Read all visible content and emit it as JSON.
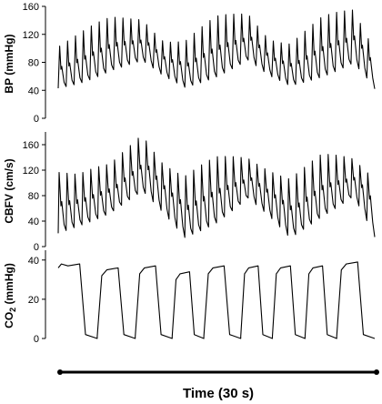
{
  "chart_data": [
    {
      "type": "line",
      "ylabel": "BP (mmHg)",
      "yticks": [
        0,
        40,
        80,
        120,
        160
      ],
      "ylim": [
        0,
        160
      ],
      "xlim": [
        0,
        30
      ],
      "beats_per_cycle": 13,
      "cycles": 3,
      "series": [
        {
          "description_keypoints_x_s": [
            0,
            2,
            5,
            8,
            10,
            12,
            15,
            18,
            20,
            22,
            25,
            28,
            30
          ],
          "diastolic_envelope": [
            42,
            52,
            70,
            80,
            58,
            45,
            62,
            82,
            58,
            45,
            62,
            80,
            42
          ],
          "systolic_envelope": [
            105,
            118,
            140,
            145,
            115,
            110,
            140,
            150,
            118,
            110,
            140,
            152,
            100
          ]
        }
      ]
    },
    {
      "type": "line",
      "ylabel": "CBFV (cm/s)",
      "yticks": [
        0,
        40,
        80,
        120,
        160
      ],
      "ylim": [
        0,
        180
      ],
      "xlim": [
        0,
        30
      ],
      "series": [
        {
          "description_keypoints_x_s": [
            0,
            2,
            5,
            8,
            10,
            12,
            15,
            18,
            20,
            22,
            25,
            28,
            30
          ],
          "diastolic_envelope": [
            20,
            35,
            55,
            85,
            50,
            15,
            40,
            75,
            45,
            12,
            50,
            80,
            15
          ],
          "systolic_envelope": [
            120,
            110,
            125,
            180,
            135,
            110,
            135,
            140,
            125,
            110,
            140,
            135,
            110
          ]
        }
      ]
    },
    {
      "type": "line",
      "ylabel": "CO2 (mmHg)",
      "yticks": [
        0,
        20,
        40
      ],
      "ylim": [
        0,
        45
      ],
      "xlim": [
        0,
        30
      ],
      "series": [
        {
          "breaths": [
            {
              "start": 0.0,
              "peak": 38
            },
            {
              "start": 3.7,
              "peak": 36
            },
            {
              "start": 7.3,
              "peak": 37
            },
            {
              "start": 10.8,
              "peak": 34
            },
            {
              "start": 13.8,
              "peak": 37
            },
            {
              "start": 17.3,
              "peak": 37
            },
            {
              "start": 20.3,
              "peak": 37
            },
            {
              "start": 23.4,
              "peak": 37
            },
            {
              "start": 26.4,
              "peak": 39
            }
          ],
          "baseline": 0
        }
      ]
    }
  ],
  "xaxis": {
    "label": "Time (30 s)"
  }
}
